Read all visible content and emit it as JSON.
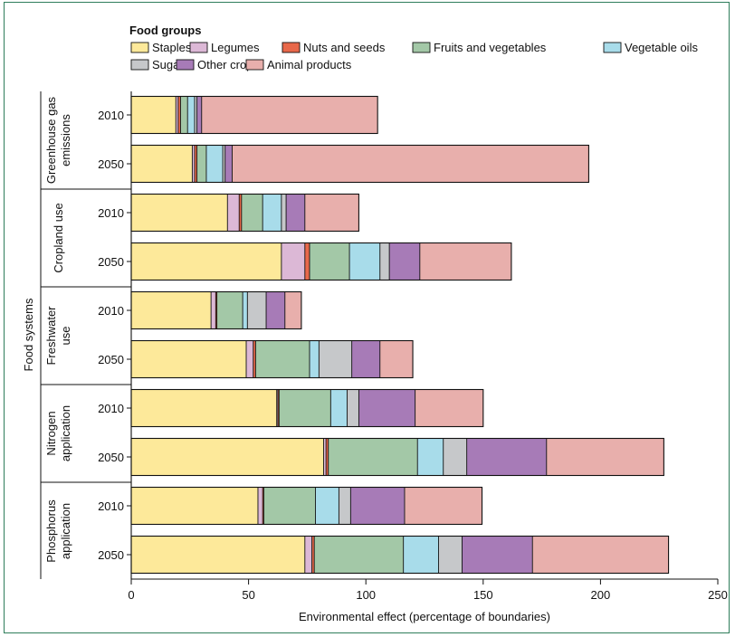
{
  "colors": {
    "frame": "#2e7d5b",
    "Staples": "#fde99a",
    "Legumes": "#dcb8d6",
    "Nuts and seeds": "#e8684a",
    "Fruits and vegetables": "#a3c8a7",
    "Vegetable oils": "#a8dcea",
    "Sugar": "#c6c8ca",
    "Other crops": "#a77bb7",
    "Animal products": "#e8afac"
  },
  "chart_data": {
    "type": "bar",
    "orientation": "horizontal",
    "stacked": true,
    "legend_title": "Food groups",
    "legend_position": "top",
    "xlabel": "Environmental effect (percentage of boundaries)",
    "ylabel": "Food systems",
    "xlim": [
      0,
      250
    ],
    "xticks": [
      "0",
      "50",
      "100",
      "150",
      "200",
      "250"
    ],
    "series_names": [
      "Staples",
      "Legumes",
      "Nuts and seeds",
      "Fruits and vegetables",
      "Vegetable oils",
      "Sugar",
      "Other crops",
      "Animal products"
    ],
    "groups": [
      {
        "label": "Greenhouse gas emissions",
        "label_lines": [
          "Greenhouse gas",
          "emissions"
        ],
        "bars": [
          {
            "year": "2010",
            "values": [
              19,
              1,
              1,
              3,
              3,
              1,
              2,
              75
            ]
          },
          {
            "year": "2050",
            "values": [
              26,
              1,
              1,
              4,
              7,
              1,
              3,
              152
            ]
          }
        ]
      },
      {
        "label": "Cropland use",
        "label_lines": [
          "Cropland use"
        ],
        "bars": [
          {
            "year": "2010",
            "values": [
              41,
              5,
              1,
              9,
              8,
              2,
              8,
              23
            ]
          },
          {
            "year": "2050",
            "values": [
              64,
              10,
              2,
              17,
              13,
              4,
              13,
              39
            ]
          }
        ]
      },
      {
        "label": "Freshwater use",
        "label_lines": [
          "Freshwater",
          "use"
        ],
        "bars": [
          {
            "year": "2010",
            "values": [
              34,
              2,
              0.5,
              11,
              2,
              8,
              8,
              7
            ]
          },
          {
            "year": "2050",
            "values": [
              49,
              3,
              1,
              23,
              4,
              14,
              12,
              14
            ]
          }
        ]
      },
      {
        "label": "Nitrogen application",
        "label_lines": [
          "Nitrogen",
          "application"
        ],
        "bars": [
          {
            "year": "2010",
            "values": [
              62,
              0.5,
              0.5,
              22,
              7,
              5,
              24,
              29
            ]
          },
          {
            "year": "2050",
            "values": [
              82,
              1,
              1,
              38,
              11,
              10,
              34,
              50
            ]
          }
        ]
      },
      {
        "label": "Phosphorus application",
        "label_lines": [
          "Phosphorus",
          "application"
        ],
        "bars": [
          {
            "year": "2010",
            "values": [
              54,
              2,
              0.5,
              22,
              10,
              5,
              23,
              33
            ]
          },
          {
            "year": "2050",
            "values": [
              74,
              3,
              1,
              38,
              15,
              10,
              30,
              58
            ]
          }
        ]
      }
    ]
  }
}
